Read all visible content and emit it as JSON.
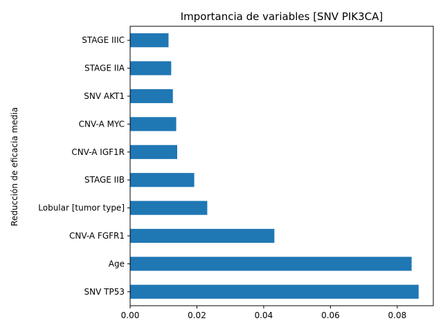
{
  "chart_data": {
    "type": "bar",
    "orientation": "horizontal",
    "title": "Importancia de variables [SNV PIK3CA]",
    "xlabel": "",
    "ylabel": "Reducción de eficacia media",
    "categories": [
      "SNV TP53",
      "Age",
      "CNV-A FGFR1",
      "Lobular [tumor type]",
      "STAGE IIB",
      "CNV-A IGF1R",
      "CNV-A MYC",
      "SNV AKT1",
      "STAGE IIA",
      "STAGE IIIC"
    ],
    "values": [
      0.0864,
      0.0843,
      0.0432,
      0.0231,
      0.0192,
      0.0141,
      0.0138,
      0.0128,
      0.0123,
      0.0115
    ],
    "xlim": [
      0,
      0.0908
    ],
    "xticks": [
      0.0,
      0.02,
      0.04,
      0.06,
      0.08
    ],
    "xtick_labels": [
      "0.00",
      "0.02",
      "0.04",
      "0.06",
      "0.08"
    ],
    "bar_color": "#1f77b4",
    "grid": false,
    "legend": "none"
  }
}
